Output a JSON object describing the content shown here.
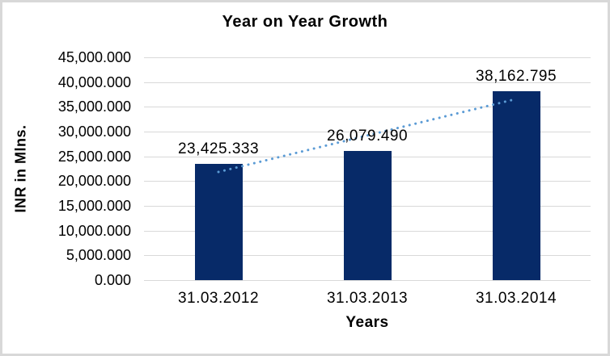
{
  "chart_data": {
    "type": "bar",
    "title": "Year on Year Growth",
    "xlabel": "Years",
    "ylabel": "INR  in Mlns.",
    "categories": [
      "31.03.2012",
      "31.03.2013",
      "31.03.2014"
    ],
    "values": [
      23425.333,
      26079.49,
      38162.795
    ],
    "data_labels": [
      "23,425.333",
      "26,079.490",
      "38,162.795"
    ],
    "y_ticks": [
      "45,000.000",
      "40,000.000",
      "35,000.000",
      "30,000.000",
      "25,000.000",
      "20,000.000",
      "15,000.000",
      "10,000.000",
      "5,000.000",
      "0.000"
    ],
    "ylim": [
      0,
      45000
    ],
    "y_step": 5000,
    "grid": true,
    "legend": false,
    "trendline": {
      "type": "linear",
      "style": "dotted"
    },
    "colors": {
      "bar": "#072a68",
      "gridline": "#d9d9d9",
      "trendline": "#5b9bd5",
      "text": "#000000",
      "border": "#d8d8d8",
      "background": "#ffffff"
    }
  }
}
